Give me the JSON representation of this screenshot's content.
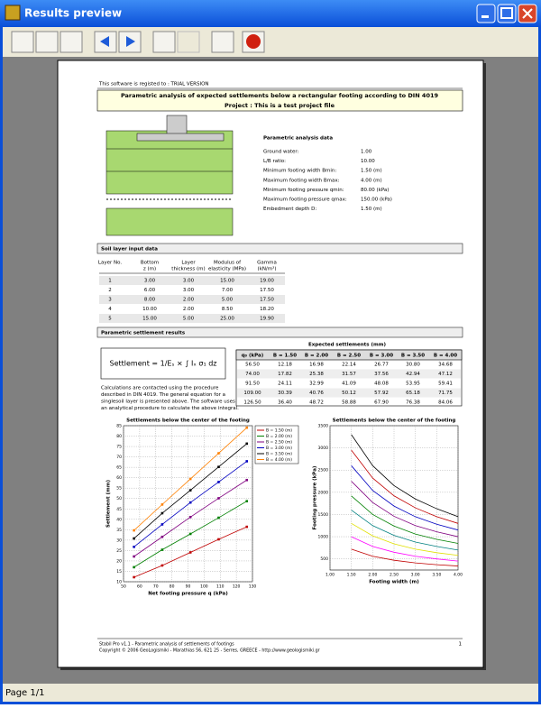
{
  "window": {
    "title": "Results preview",
    "status": "Page 1/1"
  },
  "document": {
    "registered": "This software is registed to : TRIAL VERSION",
    "title": "Parametric analysis of expected settlements below a rectangular footing according to DIN 4019",
    "project": "Project : This is a test project file",
    "parameters": {
      "heading": "Parametric analysis data",
      "rows": [
        [
          "Ground water:",
          "1.00"
        ],
        [
          "L/B ratio:",
          "10.00"
        ],
        [
          "Minimum footing width Bmin:",
          "1.50 (m)"
        ],
        [
          "Maximum footing width Bmax:",
          "4.00 (m)"
        ],
        [
          "Minimum footing pressure qmin:",
          "80.00 (kPa)"
        ],
        [
          "Maximum footing pressure qmax:",
          "150.00 (kPa)"
        ],
        [
          "Embedment depth D:",
          "1.50 (m)"
        ]
      ]
    },
    "soil": {
      "heading": "Soil layer input data",
      "columns": [
        [
          "Layer No."
        ],
        [
          "Bottom",
          "z (m)"
        ],
        [
          "Layer",
          "thickness (m)"
        ],
        [
          "Modulus of",
          "elasticity (MPa)"
        ],
        [
          "Gamma",
          "(kN/m³)"
        ]
      ],
      "rows": [
        [
          "1",
          "3.00",
          "3.00",
          "15.00",
          "19.00"
        ],
        [
          "2",
          "6.00",
          "3.00",
          "7.00",
          "17.50"
        ],
        [
          "3",
          "8.00",
          "2.00",
          "5.00",
          "17.50"
        ],
        [
          "4",
          "10.00",
          "2.00",
          "8.50",
          "18.20"
        ],
        [
          "5",
          "15.00",
          "5.00",
          "25.00",
          "19.90"
        ]
      ]
    },
    "results": {
      "heading": "Parametric settlement results",
      "formula": "Settlement = 1/Eₛ × ∫ Iₓ σ₁ dz",
      "note": [
        "Calculations are contacted using the procedure",
        "described in DIN 4019. The general equation for a",
        "singlesoil layer is presented above. The software uses",
        "an analytical procedure to calculate the above integral."
      ],
      "table": {
        "title": "Expected settlements (mm)",
        "columns": [
          "q₀ (kPa)",
          "B = 1.50",
          "B = 2.00",
          "B = 2.50",
          "B = 3.00",
          "B = 3.50",
          "B = 4.00"
        ],
        "rows": [
          [
            "56.50",
            "12.18",
            "16.98",
            "22.14",
            "26.77",
            "30.80",
            "34.68"
          ],
          [
            "74.00",
            "17.82",
            "25.38",
            "31.57",
            "37.56",
            "42.94",
            "47.12"
          ],
          [
            "91.50",
            "24.11",
            "32.99",
            "41.09",
            "48.08",
            "53.95",
            "59.41"
          ],
          [
            "109.00",
            "30.39",
            "40.76",
            "50.12",
            "57.92",
            "65.18",
            "71.75"
          ],
          [
            "126.50",
            "36.40",
            "48.72",
            "58.88",
            "67.90",
            "76.38",
            "84.06"
          ]
        ]
      }
    },
    "footer": {
      "lines": [
        "Stabil Pro v1.1 - Parametric analysis of settlements of footings",
        "Copyright © 2006 GeoLogismiki - Marathias 56, 621 25 - Serres, GREECE - http://www.geologismiki.gr"
      ],
      "page": "1"
    }
  },
  "chart_data": [
    {
      "type": "line",
      "title": "Settlements below the center of the footing",
      "x_label": "Net footing pressure q (kPa)",
      "y_label": "Settlement (mm)",
      "x": [
        56.5,
        74,
        91.5,
        109,
        126.5
      ],
      "xlim": [
        50,
        130
      ],
      "xticks": [
        50,
        60,
        70,
        80,
        90,
        100,
        110,
        120,
        130
      ],
      "ylim": [
        10,
        85
      ],
      "yticks": [
        10,
        15,
        20,
        25,
        30,
        35,
        40,
        45,
        50,
        55,
        60,
        65,
        70,
        75,
        80,
        85
      ],
      "grid": true,
      "legend": "outside right",
      "markers": true,
      "series": [
        {
          "name": "B = 1.50 (m)",
          "color": "#c00000",
          "values": [
            12.18,
            17.82,
            24.11,
            30.39,
            36.4
          ]
        },
        {
          "name": "B = 2.00 (m)",
          "color": "#008000",
          "values": [
            16.98,
            25.38,
            32.99,
            40.76,
            48.72
          ]
        },
        {
          "name": "B = 2.50 (m)",
          "color": "#800080",
          "values": [
            22.14,
            31.57,
            41.09,
            50.12,
            58.88
          ]
        },
        {
          "name": "B = 3.00 (m)",
          "color": "#0000c0",
          "values": [
            26.77,
            37.56,
            48.08,
            57.92,
            67.9
          ]
        },
        {
          "name": "B = 3.50 (m)",
          "color": "#000000",
          "values": [
            30.8,
            42.94,
            53.95,
            65.18,
            76.38
          ]
        },
        {
          "name": "B = 4.00 (m)",
          "color": "#ff8000",
          "values": [
            34.68,
            47.12,
            59.41,
            71.75,
            84.06
          ]
        }
      ]
    },
    {
      "type": "line",
      "title": "Settlements below the center of the footing",
      "x_label": "Footing width (m)",
      "y_label": "Footing pressure (kPa)",
      "x": [
        1.5,
        2,
        2.5,
        3,
        3.5,
        4
      ],
      "xlim": [
        1,
        4
      ],
      "xticks": [
        {
          "value": 1,
          "label": "1.00"
        },
        {
          "value": 1.5,
          "label": "1.50"
        },
        {
          "value": 2,
          "label": "2.00"
        },
        {
          "value": 2.5,
          "label": "2.50"
        },
        {
          "value": 3,
          "label": "3.00"
        },
        {
          "value": 3.5,
          "label": "3.50"
        },
        {
          "value": 4,
          "label": "4.00"
        }
      ],
      "ylim": [
        250,
        3500
      ],
      "yticks": [
        500,
        1000,
        1500,
        2000,
        2500,
        3000,
        3500
      ],
      "grid": true,
      "markers": false,
      "series": [
        {
          "color": "#000000",
          "values": [
            3300,
            2600,
            2150,
            1850,
            1630,
            1450
          ]
        },
        {
          "color": "#c00000",
          "values": [
            2950,
            2320,
            1920,
            1650,
            1450,
            1300
          ]
        },
        {
          "color": "#0000c0",
          "values": [
            2600,
            2040,
            1690,
            1450,
            1280,
            1150
          ]
        },
        {
          "color": "#800080",
          "values": [
            2250,
            1770,
            1460,
            1250,
            1110,
            1000
          ]
        },
        {
          "color": "#008000",
          "values": [
            1920,
            1500,
            1240,
            1060,
            940,
            850
          ]
        },
        {
          "color": "#008080",
          "values": [
            1600,
            1250,
            1030,
            880,
            780,
            700
          ]
        },
        {
          "color": "#e0e000",
          "values": [
            1300,
            1020,
            840,
            720,
            640,
            580
          ]
        },
        {
          "color": "#ff00ff",
          "values": [
            1000,
            780,
            650,
            560,
            500,
            450
          ]
        },
        {
          "color": "#c00000",
          "values": [
            720,
            560,
            470,
            410,
            370,
            340
          ]
        }
      ]
    }
  ]
}
